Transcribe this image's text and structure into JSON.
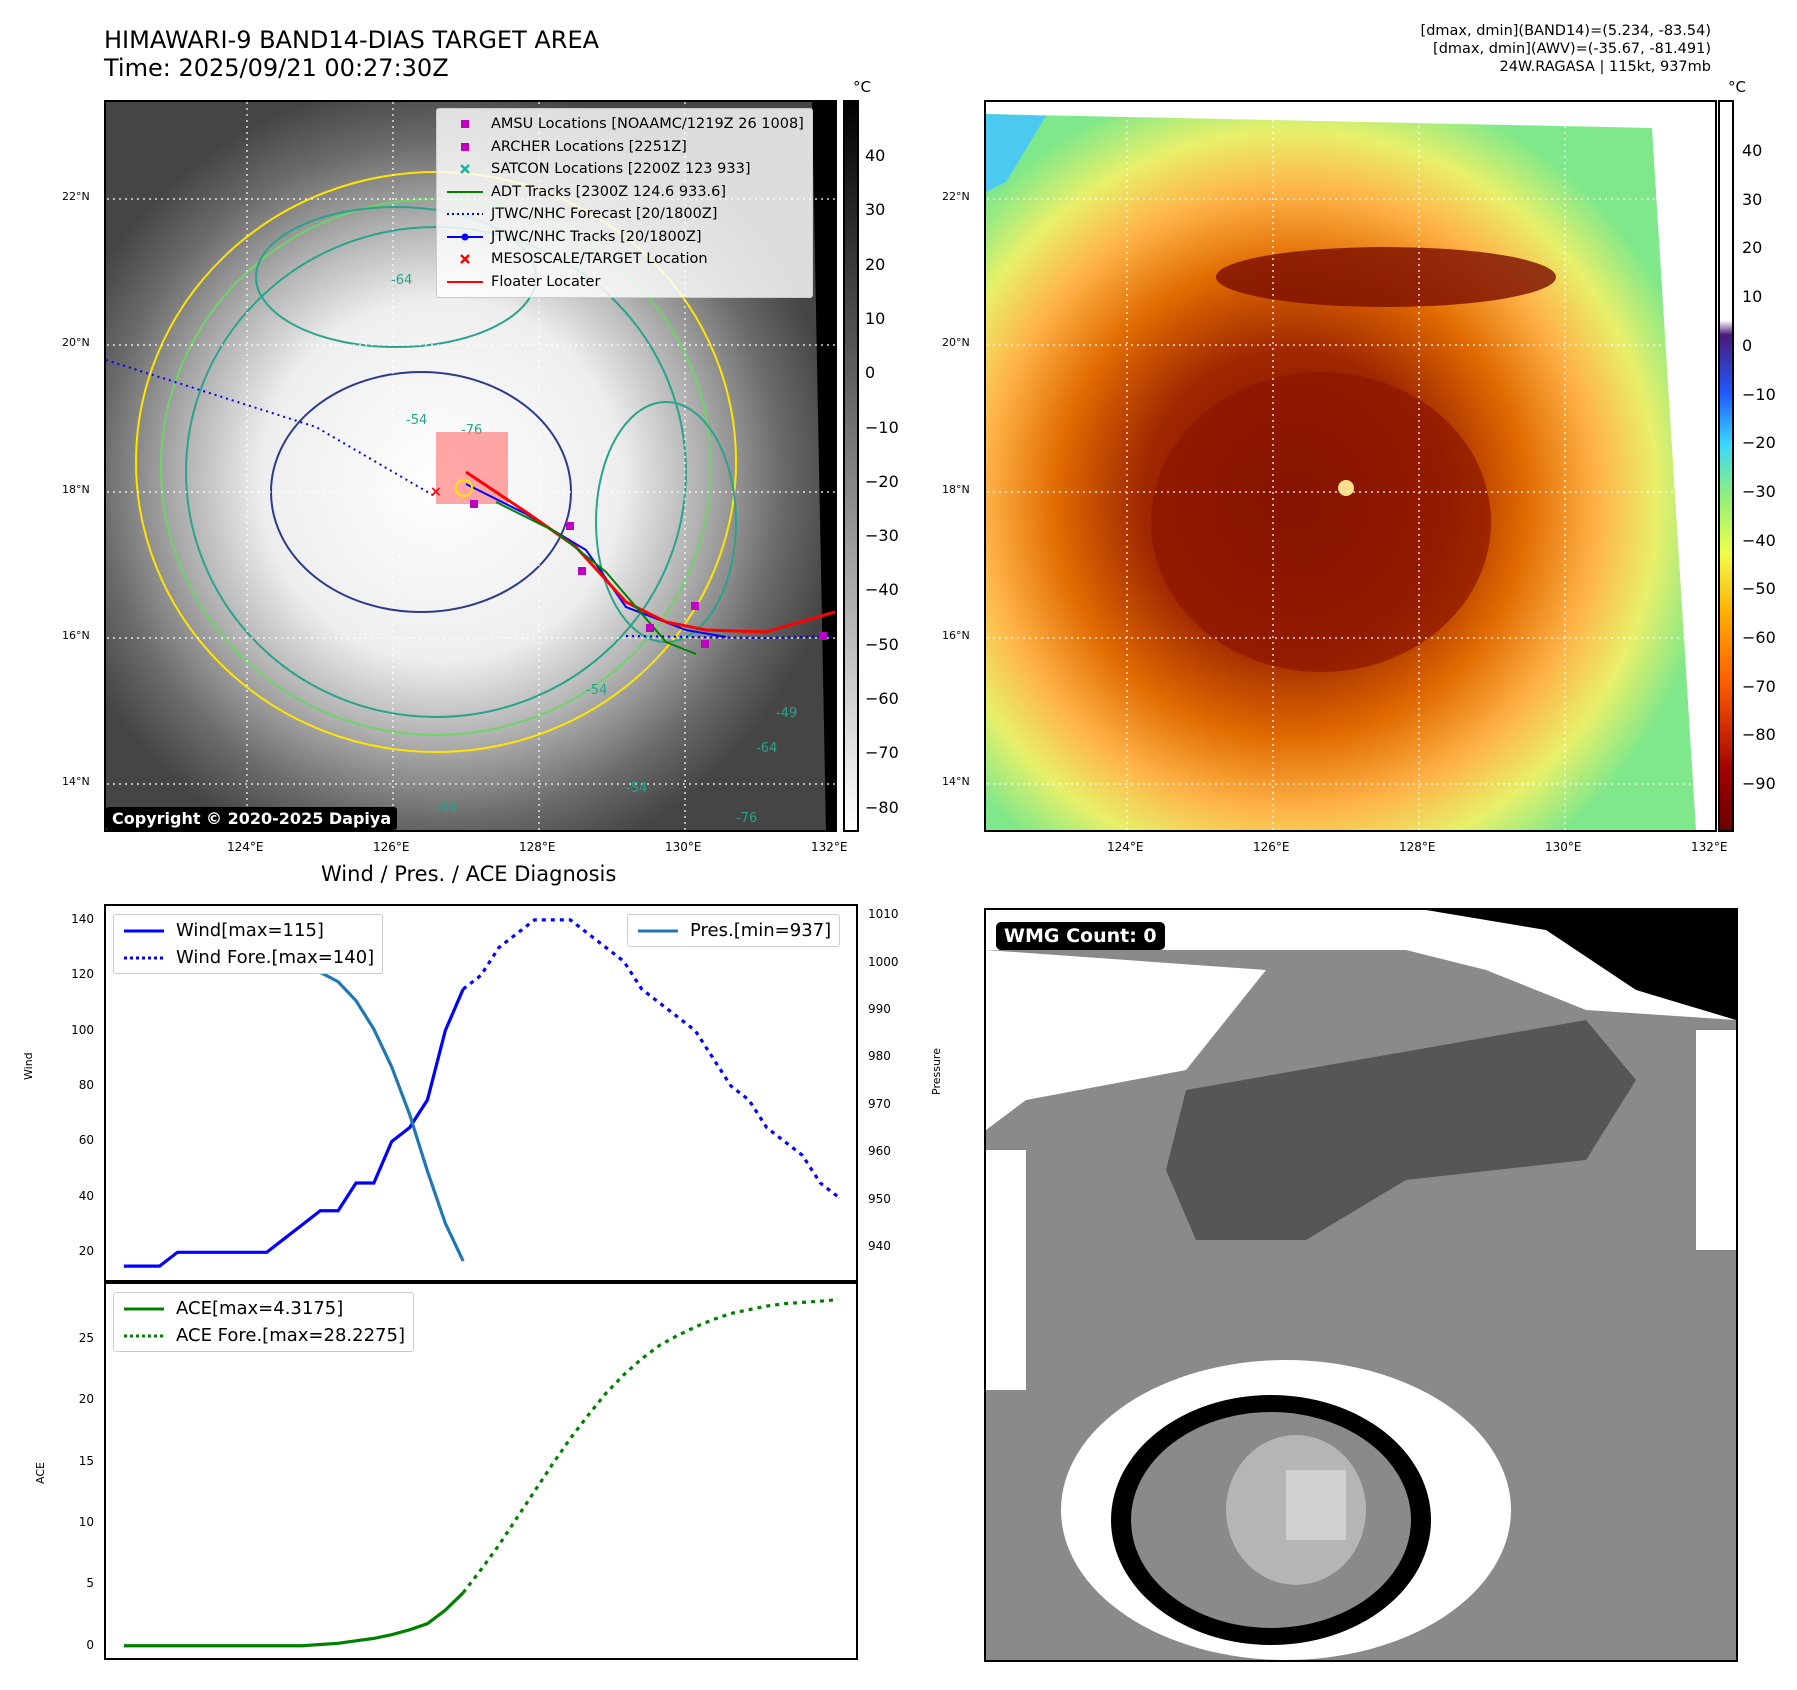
{
  "header": {
    "title_line1": "HIMAWARI-9 BAND14-DIAS TARGET AREA",
    "title_line2": "Time: 2025/09/21 00:27:30Z",
    "info_line1": "[dmax, dmin](BAND14)=(5.234, -83.54)",
    "info_line2": "[dmax, dmin](AWV)=(-35.67, -81.491)",
    "info_line3": "24W.RAGASA | 115kt, 937mb"
  },
  "colorbar_unit": "°C",
  "map_ticks": {
    "lat": [
      "22°N",
      "20°N",
      "18°N",
      "16°N",
      "14°N"
    ],
    "lon": [
      "124°E",
      "126°E",
      "128°E",
      "130°E",
      "132°E"
    ]
  },
  "colorbar_left_ticks": [
    "40",
    "30",
    "20",
    "10",
    "0",
    "−10",
    "−20",
    "−30",
    "−40",
    "−50",
    "−60",
    "−70",
    "−80"
  ],
  "colorbar_right_ticks": [
    "40",
    "30",
    "20",
    "10",
    "0",
    "−10",
    "−20",
    "−30",
    "−40",
    "−50",
    "−60",
    "−70",
    "−80",
    "−90"
  ],
  "map_legend": [
    {
      "label": "AMSU Locations [NOAAMC/1219Z 26 1008]",
      "symbol": "square",
      "color": "#c000c0"
    },
    {
      "label": "ARCHER Locations [2251Z]",
      "symbol": "square",
      "color": "#c000c0"
    },
    {
      "label": "SATCON Locations [2200Z 123 933]",
      "symbol": "x",
      "color": "#19b3a6"
    },
    {
      "label": "ADT Tracks [2300Z 124.6 933.6]",
      "symbol": "line",
      "color": "#008000"
    },
    {
      "label": "JTWC/NHC Forecast [20/1800Z]",
      "symbol": "dotted",
      "color": "#0000ff"
    },
    {
      "label": "JTWC/NHC Tracks [20/1800Z]",
      "symbol": "line-dot",
      "color": "#0000ff"
    },
    {
      "label": "MESOSCALE/TARGET Location",
      "symbol": "x",
      "color": "#ff0000"
    },
    {
      "label": "Floater Locater",
      "symbol": "line",
      "color": "#ff0000"
    }
  ],
  "contour_labels": [
    "-76",
    "-54",
    "-54",
    "-64",
    "-64",
    "-54",
    "-76",
    "-64",
    "-49"
  ],
  "copyright": "Copyright © 2020-2025 Dapiya",
  "wmg_label": "WMG Count: 0",
  "diagnosis_title": "Wind / Pres. / ACE Diagnosis",
  "chart_data": [
    {
      "type": "line",
      "title": "Wind / Pres. / ACE Diagnosis",
      "ylabel": "Wind",
      "y2label": "Pressure",
      "ylim": [
        10,
        145
      ],
      "y2lim": [
        933,
        1012
      ],
      "yticks": [
        20,
        40,
        60,
        80,
        100,
        120,
        140
      ],
      "y2ticks": [
        940,
        950,
        960,
        970,
        980,
        990,
        1000,
        1010
      ],
      "series": [
        {
          "name": "Wind[max=115]",
          "style": "solid",
          "color": "#0000ff",
          "axis": "left",
          "x": [
            0,
            1,
            2,
            3,
            4,
            5,
            6,
            7,
            8,
            9,
            10,
            11,
            12,
            13,
            14,
            15,
            16,
            17,
            18,
            19
          ],
          "values": [
            15,
            15,
            15,
            20,
            20,
            20,
            20,
            20,
            20,
            25,
            30,
            35,
            35,
            45,
            45,
            60,
            65,
            75,
            100,
            115
          ]
        },
        {
          "name": "Wind Fore.[max=140]",
          "style": "dotted",
          "color": "#0000ff",
          "axis": "left",
          "x": [
            19,
            20,
            21,
            22,
            23,
            24,
            25,
            26,
            27,
            28,
            29,
            30,
            31,
            32,
            33,
            34,
            35,
            36,
            37,
            38,
            39,
            40
          ],
          "values": [
            115,
            120,
            130,
            135,
            140,
            140,
            140,
            135,
            130,
            125,
            115,
            110,
            105,
            100,
            90,
            80,
            75,
            65,
            60,
            55,
            45,
            40
          ]
        },
        {
          "name": "Pres.[min=937]",
          "style": "solid",
          "color": "#1f77b4",
          "axis": "right",
          "x": [
            1,
            2,
            3,
            4,
            5,
            6,
            7,
            8,
            9,
            10,
            11,
            12,
            13,
            14,
            15,
            16,
            17,
            18,
            19
          ],
          "values": [
            1007,
            1005,
            1005,
            1005,
            1005,
            1005,
            1004,
            1003,
            1002,
            1000,
            998,
            996,
            992,
            986,
            978,
            968,
            956,
            945,
            937
          ]
        }
      ]
    },
    {
      "type": "line",
      "ylabel": "ACE",
      "ylim": [
        -1,
        29.5
      ],
      "yticks": [
        0,
        5,
        10,
        15,
        20,
        25
      ],
      "series": [
        {
          "name": "ACE[max=4.3175]",
          "style": "solid",
          "color": "#008000",
          "x": [
            0,
            1,
            2,
            3,
            4,
            5,
            6,
            7,
            8,
            9,
            10,
            11,
            12,
            13,
            14,
            15,
            16,
            17,
            18,
            19
          ],
          "values": [
            0,
            0,
            0,
            0,
            0,
            0,
            0,
            0,
            0,
            0,
            0,
            0.1,
            0.2,
            0.4,
            0.6,
            0.9,
            1.3,
            1.8,
            2.9,
            4.3175
          ]
        },
        {
          "name": "ACE Fore.[max=28.2275]",
          "style": "dotted",
          "color": "#008000",
          "x": [
            19,
            20,
            21,
            22,
            23,
            24,
            25,
            26,
            27,
            28,
            29,
            30,
            31,
            32,
            33,
            34,
            35,
            36,
            37,
            38,
            39,
            40
          ],
          "values": [
            4.3175,
            6.2,
            8.2,
            10.4,
            12.6,
            14.8,
            16.9,
            18.8,
            20.6,
            22.1,
            23.4,
            24.5,
            25.3,
            26.0,
            26.6,
            27.1,
            27.4,
            27.7,
            27.9,
            28.0,
            28.1,
            28.2275
          ]
        }
      ]
    }
  ]
}
